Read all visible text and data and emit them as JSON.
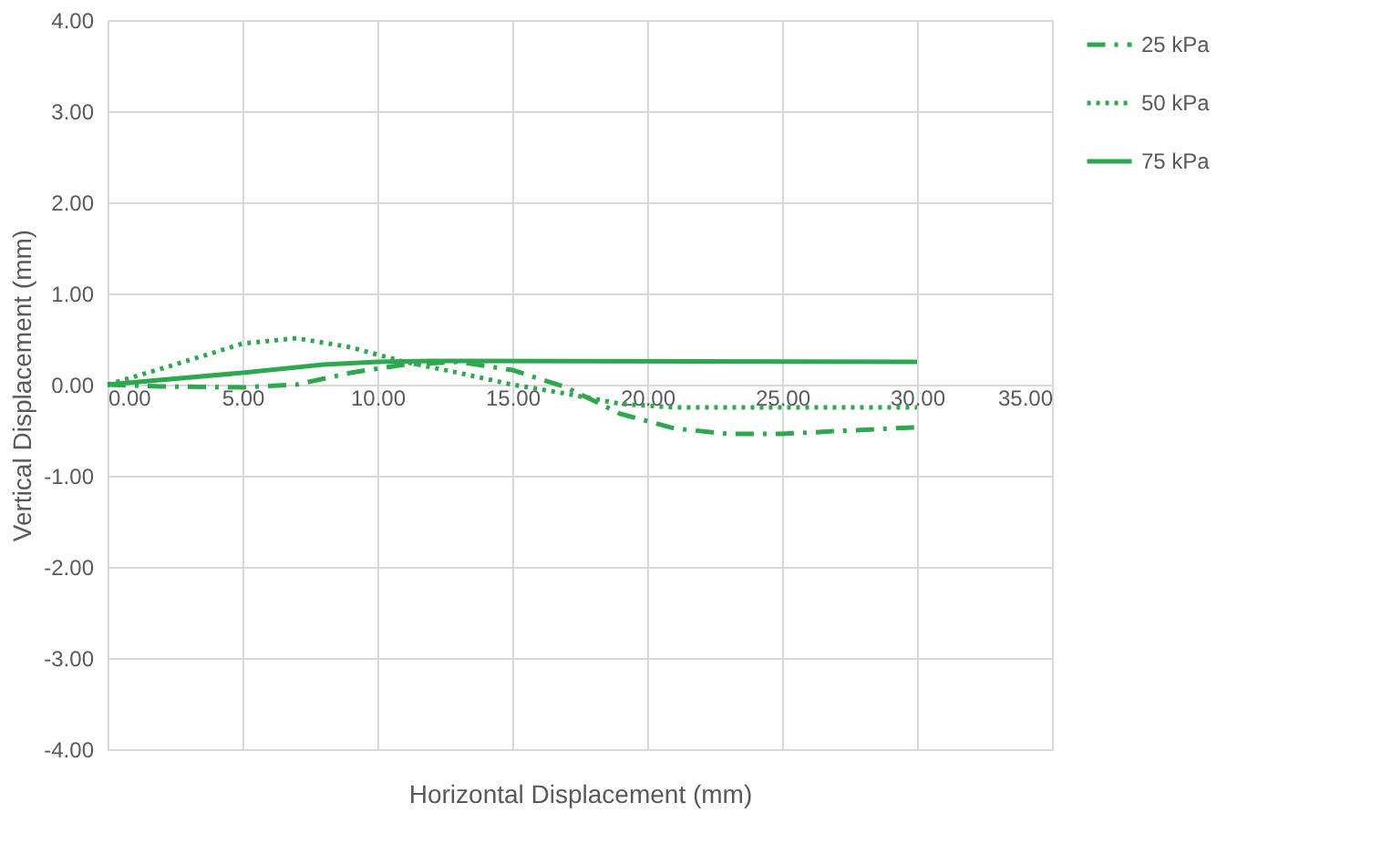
{
  "chart_data": {
    "type": "line",
    "xlabel": "Horizontal Displacement (mm)",
    "ylabel": "Vertical Displacement (mm)",
    "xlim": [
      0,
      35
    ],
    "xticks": [
      {
        "value": 0,
        "label": "0.00"
      },
      {
        "value": 5,
        "label": "5.00"
      },
      {
        "value": 10,
        "label": "10.00"
      },
      {
        "value": 15,
        "label": "15.00"
      },
      {
        "value": 20,
        "label": "20.00"
      },
      {
        "value": 25,
        "label": "25.00"
      },
      {
        "value": 30,
        "label": "30.00"
      },
      {
        "value": 35,
        "label": "35.00"
      }
    ],
    "ylim": [
      -4,
      4
    ],
    "yticks": [
      {
        "value": -4,
        "label": "-4.00"
      },
      {
        "value": -3,
        "label": "-3.00"
      },
      {
        "value": -2,
        "label": "-2.00"
      },
      {
        "value": -1,
        "label": "-1.00"
      },
      {
        "value": 0,
        "label": "0.00"
      },
      {
        "value": 1,
        "label": "1.00"
      },
      {
        "value": 2,
        "label": "2.00"
      },
      {
        "value": 3,
        "label": "3.00"
      },
      {
        "value": 4,
        "label": "4.00"
      }
    ],
    "grid": true,
    "legend": "right",
    "marker": "none",
    "series": [
      {
        "name": "25 kPa",
        "color": "#2ea84f",
        "line_style": "dashdot",
        "x": [
          0,
          2,
          5,
          7,
          9,
          11,
          13,
          15,
          17,
          19,
          21,
          23,
          25,
          27,
          29,
          30
        ],
        "values": [
          0,
          -0.02,
          -0.03,
          0,
          0.13,
          0.22,
          0.25,
          0.16,
          -0.03,
          -0.32,
          -0.48,
          -0.54,
          -0.54,
          -0.51,
          -0.48,
          -0.47
        ]
      },
      {
        "name": "50 kPa",
        "color": "#2ea84f",
        "line_style": "dotted",
        "x": [
          0,
          2.5,
          5,
          7,
          9,
          11,
          13,
          15,
          17,
          19,
          21,
          25,
          30
        ],
        "values": [
          0,
          0.22,
          0.45,
          0.51,
          0.41,
          0.25,
          0.13,
          0,
          -0.1,
          -0.21,
          -0.25,
          -0.25,
          -0.25
        ]
      },
      {
        "name": "75 kPa",
        "color": "#2ea84f",
        "line_style": "solid",
        "x": [
          0,
          5,
          8,
          10,
          12,
          30
        ],
        "values": [
          0,
          0.13,
          0.22,
          0.25,
          0.26,
          0.25
        ]
      }
    ]
  }
}
